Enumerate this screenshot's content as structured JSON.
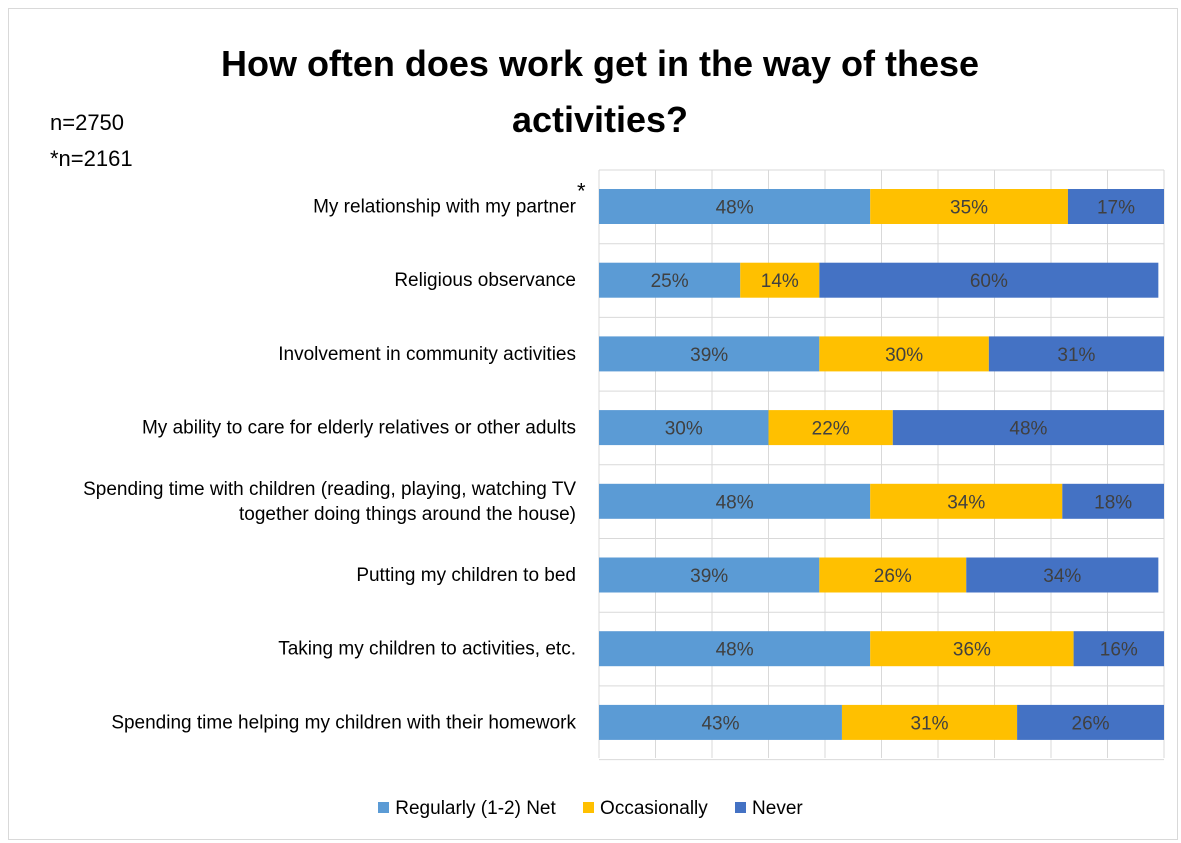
{
  "chart_data": {
    "type": "bar",
    "orientation": "horizontal",
    "stacked": true,
    "percent_stacked": true,
    "title": "How often does work get in the way of these activities?",
    "notes": [
      "n=2750",
      "*n=2161"
    ],
    "categories": [
      "My relationship with my partner",
      "Religious observance",
      "Involvement in community activities",
      "My ability to care for elderly relatives or other adults",
      "Spending time with children (reading, playing, watching TV together doing things around the house)",
      "Putting my children to bed",
      "Taking my children to activities, etc.",
      "Spending time helping my children with their homework"
    ],
    "category_footnotes": [
      "*",
      "",
      "",
      "",
      "",
      "",
      "",
      ""
    ],
    "series": [
      {
        "name": "Regularly (1-2) Net",
        "color": "#5b9bd5",
        "values": [
          48,
          25,
          39,
          30,
          48,
          39,
          48,
          43
        ]
      },
      {
        "name": "Occasionally",
        "color": "#ffc000",
        "values": [
          35,
          14,
          30,
          22,
          34,
          26,
          36,
          31
        ]
      },
      {
        "name": "Never",
        "color": "#4472c4",
        "values": [
          17,
          60,
          31,
          48,
          18,
          34,
          16,
          26
        ]
      }
    ],
    "value_suffix": "%",
    "xlim": [
      0,
      100
    ],
    "grid": true,
    "legend_position": "bottom"
  }
}
